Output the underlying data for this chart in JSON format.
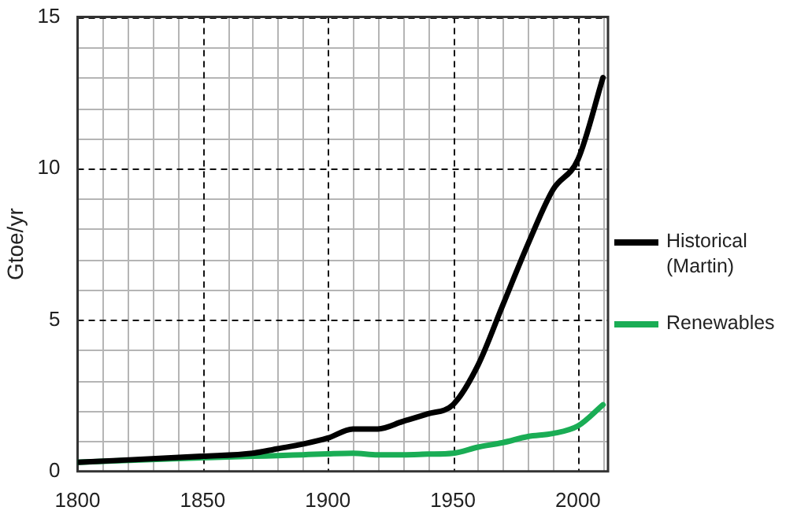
{
  "chart_data": {
    "type": "line",
    "ylabel": "Gtoe/yr",
    "xlim": [
      1800,
      2012
    ],
    "ylim": [
      0,
      15
    ],
    "xticks": [
      1800,
      {
        "value": 1810,
        "label": null
      },
      {
        "value": 1820,
        "label": null
      },
      {
        "value": 1830,
        "label": null
      },
      {
        "value": 1840,
        "label": null
      },
      1850,
      {
        "value": 1860,
        "label": null
      },
      {
        "value": 1870,
        "label": null
      },
      {
        "value": 1880,
        "label": null
      },
      {
        "value": 1890,
        "label": null
      },
      1900,
      {
        "value": 1910,
        "label": null
      },
      {
        "value": 1920,
        "label": null
      },
      {
        "value": 1930,
        "label": null
      },
      {
        "value": 1940,
        "label": null
      },
      1950,
      {
        "value": 1960,
        "label": null
      },
      {
        "value": 1970,
        "label": null
      },
      {
        "value": 1980,
        "label": null
      },
      {
        "value": 1990,
        "label": null
      },
      2000,
      {
        "value": 2010,
        "label": null
      }
    ],
    "yticks": [
      0,
      {
        "value": 1,
        "label": null
      },
      {
        "value": 2,
        "label": null
      },
      {
        "value": 3,
        "label": null
      },
      {
        "value": 4,
        "label": null
      },
      5,
      {
        "value": 6,
        "label": null
      },
      {
        "value": 7,
        "label": null
      },
      {
        "value": 8,
        "label": null
      },
      {
        "value": 9,
        "label": null
      },
      10,
      {
        "value": 11,
        "label": null
      },
      {
        "value": 12,
        "label": null
      },
      {
        "value": 13,
        "label": null
      },
      {
        "value": 14,
        "label": null
      },
      15
    ],
    "grid": true,
    "legend": "right",
    "marker": "none",
    "line_style": "solid",
    "x": [
      1800,
      1850,
      1870,
      1880,
      1890,
      1900,
      1910,
      1920,
      1930,
      1940,
      1950,
      1960,
      1970,
      1980,
      1990,
      2000,
      2010
    ],
    "series": [
      {
        "name": "Historical (Martin)",
        "color": "#000000",
        "values": [
          0.3,
          0.5,
          0.6,
          0.75,
          0.9,
          1.1,
          1.4,
          1.4,
          1.65,
          1.9,
          2.2,
          3.5,
          5.5,
          7.5,
          9.3,
          10.3,
          13.0
        ]
      },
      {
        "name": "Renewables",
        "color": "#1aad55",
        "values": [
          0.3,
          0.45,
          0.5,
          0.52,
          0.55,
          0.58,
          0.6,
          0.55,
          0.55,
          0.57,
          0.6,
          0.8,
          0.95,
          1.15,
          1.25,
          1.5,
          2.2
        ]
      }
    ]
  }
}
